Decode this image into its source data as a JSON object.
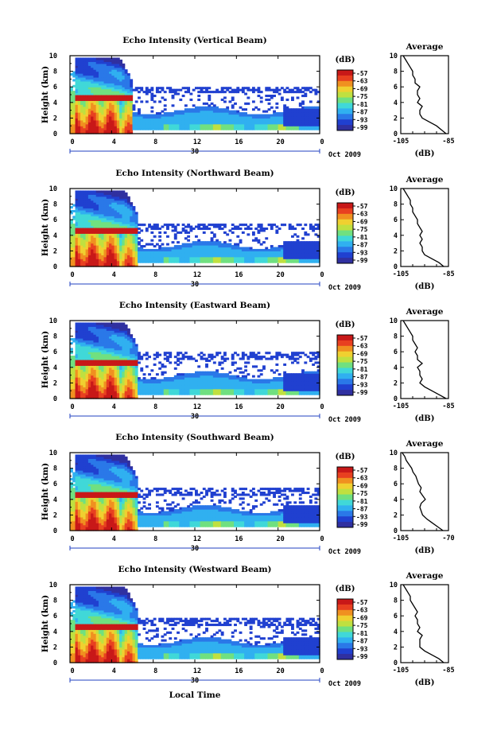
{
  "chart_data": [
    {
      "type": "heatmap",
      "title": "Echo Intensity (Vertical Beam)",
      "ylabel": "Height (km)",
      "xticks": [
        "0",
        "4",
        "8",
        "12",
        "16",
        "20",
        "0"
      ],
      "yticks": [
        "0",
        "2",
        "4",
        "6",
        "8",
        "10"
      ],
      "date_label": "30",
      "month_label": "Oct 2009",
      "xlim": [
        0,
        24
      ],
      "ylim": [
        0,
        10
      ],
      "colorbar": {
        "label": "(dB)",
        "ticks": [
          "-57",
          "-63",
          "-69",
          "-75",
          "-81",
          "-87",
          "-93",
          "-99"
        ]
      },
      "features": {
        "front_end_hour": 6.0,
        "bright_band_km": 4.6,
        "upper_layer_km": [
          5.2,
          6.0
        ],
        "low_cloud_top_km": 3.0
      },
      "average_profile": {
        "title": "Average",
        "xlabel": "(dB)",
        "xticks": [
          "-105",
          "-85"
        ],
        "xlim": [
          -105,
          -85
        ],
        "height_km": [
          0,
          0.5,
          1,
          1.5,
          2,
          2.5,
          3,
          3.5,
          4,
          4.5,
          5,
          5.5,
          6,
          6.5,
          7,
          7.5,
          8,
          8.5,
          9,
          9.5,
          10
        ],
        "value_db": [
          -86,
          -88,
          -90,
          -93,
          -96,
          -97,
          -97,
          -96,
          -98,
          -97,
          -98,
          -98,
          -97,
          -99,
          -99,
          -100,
          -100,
          -101,
          -102,
          -103,
          -104
        ]
      }
    },
    {
      "type": "heatmap",
      "title": "Echo Intensity (Northward Beam)",
      "ylabel": "Height (km)",
      "xticks": [
        "0",
        "4",
        "8",
        "12",
        "16",
        "20",
        "0"
      ],
      "yticks": [
        "0",
        "2",
        "4",
        "6",
        "8",
        "10"
      ],
      "date_label": "30",
      "month_label": "Oct 2009",
      "xlim": [
        0,
        24
      ],
      "ylim": [
        0,
        10
      ],
      "colorbar": {
        "label": "(dB)",
        "ticks": [
          "-57",
          "-63",
          "-69",
          "-75",
          "-81",
          "-87",
          "-93",
          "-99"
        ]
      },
      "features": {
        "front_end_hour": 6.5,
        "bright_band_km": 4.6,
        "upper_layer_km": [
          4.8,
          5.6
        ],
        "low_cloud_top_km": 2.8
      },
      "average_profile": {
        "title": "Average",
        "xlabel": "(dB)",
        "xticks": [
          "-105",
          "-85"
        ],
        "xlim": [
          -105,
          -85
        ],
        "height_km": [
          0,
          0.5,
          1,
          1.5,
          2,
          2.5,
          3,
          3.5,
          4,
          4.5,
          5,
          5.5,
          6,
          6.5,
          7,
          7.5,
          8,
          8.5,
          9,
          9.5,
          10
        ],
        "value_db": [
          -87,
          -89,
          -92,
          -95,
          -96,
          -96,
          -97,
          -96,
          -97,
          -96,
          -97,
          -98,
          -98,
          -99,
          -100,
          -100,
          -101,
          -101,
          -102,
          -103,
          -104
        ]
      }
    },
    {
      "type": "heatmap",
      "title": "Echo Intensity (Eastward Beam)",
      "ylabel": "Height (km)",
      "xticks": [
        "0",
        "4",
        "8",
        "12",
        "16",
        "20",
        "0"
      ],
      "yticks": [
        "0",
        "2",
        "4",
        "6",
        "8",
        "10"
      ],
      "date_label": "30",
      "month_label": "Oct 2009",
      "xlim": [
        0,
        24
      ],
      "ylim": [
        0,
        10
      ],
      "colorbar": {
        "label": "(dB)",
        "ticks": [
          "-57",
          "-63",
          "-69",
          "-75",
          "-81",
          "-87",
          "-93",
          "-99"
        ]
      },
      "features": {
        "front_end_hour": 6.5,
        "bright_band_km": 4.6,
        "upper_layer_km": [
          5.0,
          6.0
        ],
        "low_cloud_top_km": 3.0
      },
      "average_profile": {
        "title": "Average",
        "xlabel": "(dB)",
        "xticks": [
          "-105",
          "-85"
        ],
        "xlim": [
          -105,
          -85
        ],
        "height_km": [
          0,
          0.5,
          1,
          1.5,
          2,
          2.5,
          3,
          3.5,
          4,
          4.5,
          5,
          5.5,
          6,
          6.5,
          7,
          7.5,
          8,
          8.5,
          9,
          9.5,
          10
        ],
        "value_db": [
          -86,
          -89,
          -92,
          -95,
          -97,
          -96,
          -97,
          -97,
          -98,
          -96,
          -98,
          -98,
          -99,
          -98,
          -99,
          -100,
          -100,
          -101,
          -102,
          -103,
          -104
        ]
      }
    },
    {
      "type": "heatmap",
      "title": "Echo Intensity (Southward Beam)",
      "ylabel": "Height (km)",
      "xticks": [
        "0",
        "4",
        "8",
        "12",
        "16",
        "20",
        "0"
      ],
      "yticks": [
        "0",
        "2",
        "4",
        "6",
        "8",
        "10"
      ],
      "date_label": "30",
      "month_label": "Oct 2009",
      "xlim": [
        0,
        24
      ],
      "ylim": [
        0,
        10
      ],
      "colorbar": {
        "label": "(dB)",
        "ticks": [
          "-57",
          "-63",
          "-69",
          "-75",
          "-81",
          "-87",
          "-93",
          "-99"
        ]
      },
      "features": {
        "front_end_hour": 6.5,
        "bright_band_km": 4.6,
        "upper_layer_km": [
          4.6,
          5.6
        ],
        "low_cloud_top_km": 2.8
      },
      "average_profile": {
        "title": "Average",
        "xlabel": "(dB)",
        "xticks": [
          "-105",
          "-70"
        ],
        "xlim": [
          -105,
          -70
        ],
        "height_km": [
          0,
          0.5,
          1,
          1.5,
          2,
          2.5,
          3,
          3.5,
          4,
          4.5,
          5,
          5.5,
          6,
          6.5,
          7,
          7.5,
          8,
          8.5,
          9,
          9.5,
          10
        ],
        "value_db": [
          -74,
          -78,
          -82,
          -86,
          -89,
          -90,
          -91,
          -90,
          -87,
          -89,
          -91,
          -90,
          -92,
          -93,
          -94,
          -96,
          -97,
          -99,
          -101,
          -102,
          -104
        ]
      }
    },
    {
      "type": "heatmap",
      "title": "Echo Intensity (Westward Beam)",
      "ylabel": "Height (km)",
      "xticks": [
        "0",
        "4",
        "8",
        "12",
        "16",
        "20",
        "0"
      ],
      "yticks": [
        "0",
        "2",
        "4",
        "6",
        "8",
        "10"
      ],
      "date_label": "30",
      "month_label": "Oct 2009",
      "xlabel": "Local Time",
      "xlim": [
        0,
        24
      ],
      "ylim": [
        0,
        10
      ],
      "colorbar": {
        "label": "(dB)",
        "ticks": [
          "-57",
          "-63",
          "-69",
          "-75",
          "-81",
          "-87",
          "-93",
          "-99"
        ]
      },
      "features": {
        "front_end_hour": 6.5,
        "bright_band_km": 4.6,
        "upper_layer_km": [
          4.8,
          5.8
        ],
        "low_cloud_top_km": 2.8
      },
      "average_profile": {
        "title": "Average",
        "xlabel": "(dB)",
        "xticks": [
          "-105",
          "-85"
        ],
        "xlim": [
          -105,
          -85
        ],
        "height_km": [
          0,
          0.5,
          1,
          1.5,
          2,
          2.5,
          3,
          3.5,
          4,
          4.5,
          5,
          5.5,
          6,
          6.5,
          7,
          7.5,
          8,
          8.5,
          9,
          9.5,
          10
        ],
        "value_db": [
          -87,
          -89,
          -92,
          -95,
          -97,
          -97,
          -97,
          -96,
          -98,
          -97,
          -98,
          -98,
          -99,
          -98,
          -99,
          -100,
          -101,
          -101,
          -102,
          -103,
          -104
        ]
      }
    }
  ],
  "colors": [
    "#3030a0",
    "#2040d0",
    "#2a78e8",
    "#30b0f0",
    "#40d8d8",
    "#70e080",
    "#c0e040",
    "#f0d030",
    "#f09020",
    "#e84020",
    "#c81818"
  ]
}
